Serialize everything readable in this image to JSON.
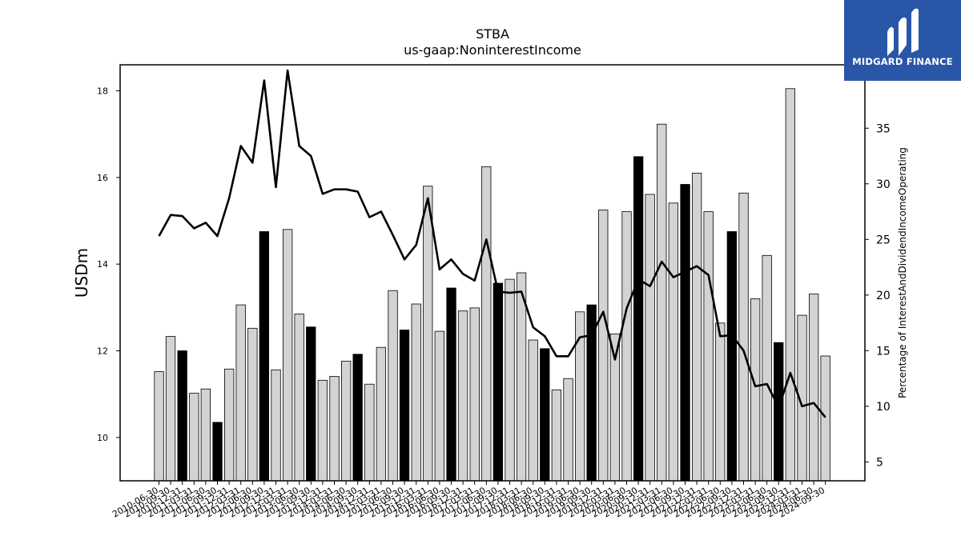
{
  "chart_data": {
    "type": "bar",
    "title": "STBA",
    "subtitle": "us-gaap:NoninterestIncome",
    "ylabel": "USDm",
    "y2label": "Percentage of InterestAndDividendIncomeOperating",
    "ylim": [
      9,
      18.6
    ],
    "y2lim": [
      3.3,
      40.7
    ],
    "yticks": [
      "10",
      "12",
      "14",
      "16",
      "18"
    ],
    "y2ticks": [
      "5",
      "10",
      "15",
      "20",
      "25",
      "30",
      "35"
    ],
    "categories": [
      "2010-06-30",
      "2010-09-30",
      "2010-12-31",
      "2011-03-31",
      "2011-06-30",
      "2011-09-30",
      "2011-12-31",
      "2012-03-31",
      "2012-06-30",
      "2012-09-30",
      "2012-12-31",
      "2013-03-31",
      "2013-06-30",
      "2013-09-30",
      "2013-12-31",
      "2014-03-31",
      "2014-06-30",
      "2014-09-30",
      "2014-12-31",
      "2015-03-31",
      "2015-06-30",
      "2015-09-30",
      "2015-12-31",
      "2016-03-31",
      "2016-06-30",
      "2016-09-30",
      "2016-12-31",
      "2017-03-31",
      "2017-06-30",
      "2017-09-30",
      "2017-12-31",
      "2018-03-31",
      "2018-06-30",
      "2018-09-30",
      "2018-12-31",
      "2019-03-31",
      "2019-06-30",
      "2019-09-30",
      "2019-12-31",
      "2020-03-31",
      "2020-06-30",
      "2020-09-30",
      "2020-12-31",
      "2021-03-31",
      "2021-06-30",
      "2021-09-30",
      "2021-12-31",
      "2022-03-31",
      "2022-06-30",
      "2022-09-30",
      "2022-12-31",
      "2023-03-31",
      "2023-06-30",
      "2023-09-30",
      "2023-12-31",
      "2024-03-31",
      "2024-06-30",
      "2024-09-30"
    ],
    "series": [
      {
        "values": [
          11.52,
          12.33,
          12.0,
          11.02,
          11.12,
          10.35,
          11.58,
          13.06,
          12.52,
          14.75,
          11.56,
          14.8,
          12.85,
          12.55,
          11.32,
          11.41,
          11.76,
          11.92,
          11.23,
          12.08,
          13.39,
          12.48,
          13.08,
          15.8,
          12.45,
          13.45,
          12.92,
          12.99,
          16.25,
          13.56,
          13.65,
          13.8,
          12.25,
          12.05,
          11.1,
          11.36,
          12.9,
          13.06,
          15.25,
          12.39,
          15.21,
          16.48,
          15.61,
          17.23,
          15.41,
          15.84,
          16.1,
          15.21,
          12.64,
          14.75,
          15.64,
          13.2,
          14.2,
          12.19,
          18.05,
          12.82,
          13.31,
          11.88
        ]
      },
      {
        "values": [
          25.3,
          27.2,
          27.1,
          26.0,
          26.5,
          25.3,
          28.7,
          33.4,
          31.9,
          39.3,
          29.7,
          40.2,
          33.4,
          32.5,
          29.1,
          29.5,
          29.5,
          29.3,
          27.0,
          27.5,
          25.4,
          23.2,
          24.5,
          28.7,
          22.3,
          23.2,
          21.9,
          21.3,
          25.0,
          20.3,
          20.2,
          20.3,
          17.1,
          16.3,
          14.5,
          14.5,
          16.2,
          16.4,
          18.5,
          14.2,
          18.8,
          21.4,
          20.8,
          23.0,
          21.6,
          22.1,
          22.6,
          21.8,
          16.3,
          16.4,
          15.0,
          11.8,
          12.0,
          9.9,
          13.0,
          10.0,
          10.3,
          9.0
        ]
      }
    ],
    "highlighted_bars": [
      "2010-12-31",
      "2011-09-30",
      "2012-09-30",
      "2013-09-30",
      "2014-09-30",
      "2015-09-30",
      "2016-09-30",
      "2017-09-30",
      "2018-09-30",
      "2019-09-30",
      "2020-09-30",
      "2021-09-30",
      "2022-09-30",
      "2023-09-30"
    ],
    "colors": {
      "bar": "#d3d3d3",
      "bar_highlight": "#000000",
      "line": "#000000",
      "edge": "#000000"
    }
  },
  "logo": {
    "name": "MIDGARD FINANCE",
    "background": "#2a56a8"
  }
}
